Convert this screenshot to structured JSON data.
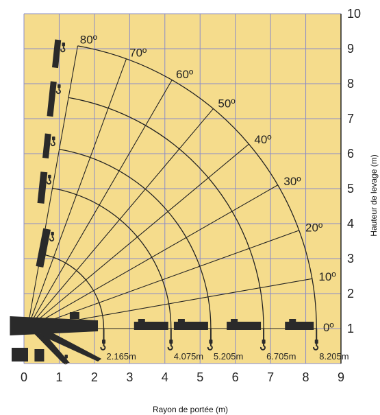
{
  "chart_data": {
    "type": "diagram",
    "xlabel": "Rayon de portée (m)",
    "ylabel": "Hauteur de levage (m)",
    "xlim": [
      0,
      9
    ],
    "ylim": [
      0,
      10
    ],
    "x_ticks": [
      "0",
      "1",
      "2",
      "3",
      "4",
      "5",
      "6",
      "7",
      "8",
      "9"
    ],
    "y_ticks": [
      "1",
      "2",
      "3",
      "4",
      "5",
      "6",
      "7",
      "8",
      "9",
      "10"
    ],
    "grid": true,
    "colors": {
      "background": "#f5dc8c",
      "grid": "#8a8cc8",
      "lines": "#222222",
      "crane": "#2a2a2a"
    },
    "pivot": {
      "x": 0.1,
      "y": 1.0
    },
    "angle_labels": [
      "0º",
      "10º",
      "20º",
      "30º",
      "40º",
      "50º",
      "60º",
      "70º",
      "80º"
    ],
    "angles_deg": [
      0,
      10,
      20,
      30,
      40,
      50,
      60,
      70,
      80
    ],
    "reach_labels": [
      "2.165m",
      "4.075m",
      "5.205m",
      "6.705m",
      "8.205m"
    ],
    "reach_m": [
      2.165,
      4.075,
      5.205,
      6.705,
      8.205
    ]
  }
}
